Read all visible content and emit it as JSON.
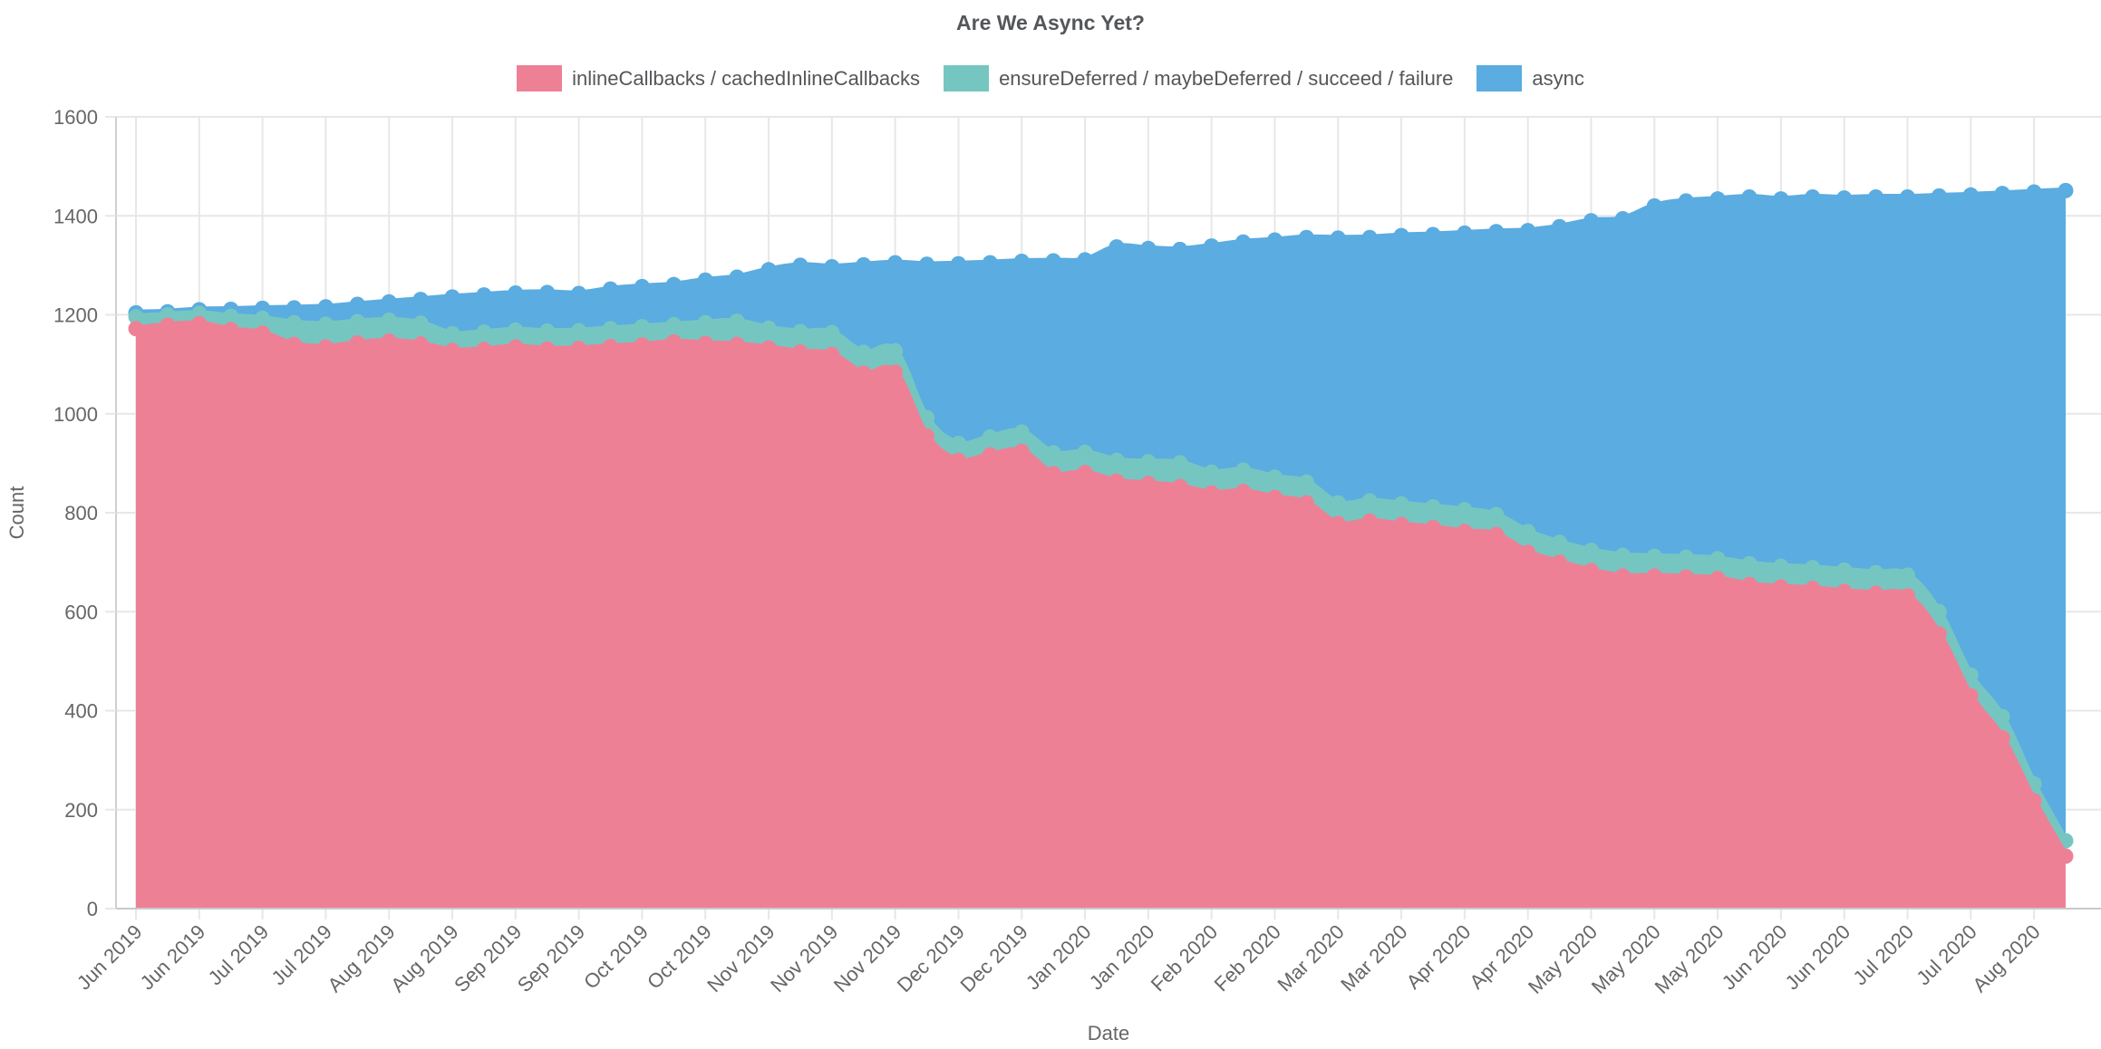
{
  "title": "Are We Async Yet?",
  "legend": {
    "position": "top",
    "items": [
      {
        "label": "inlineCallbacks / cachedInlineCallbacks",
        "color": "#ee8096"
      },
      {
        "label": "ensureDeferred / maybeDeferred / succeed / failure",
        "color": "#75c6c1"
      },
      {
        "label": "async",
        "color": "#5aace1"
      }
    ]
  },
  "chart_data": {
    "type": "area",
    "stacked": true,
    "title": "Are We Async Yet?",
    "xlabel": "Date",
    "ylabel": "Count",
    "ylim": [
      0,
      1600
    ],
    "y_ticks": [
      0,
      200,
      400,
      600,
      800,
      1000,
      1200,
      1400,
      1600
    ],
    "grid": true,
    "point_markers": true,
    "legend_position": "top",
    "n_points": 62,
    "points_per_week": 1,
    "tick_every": 2,
    "x_tick_labels": [
      "Jun 2019",
      "Jun 2019",
      "Jul 2019",
      "Jul 2019",
      "Aug 2019",
      "Aug 2019",
      "Sep 2019",
      "Sep 2019",
      "Oct 2019",
      "Oct 2019",
      "Nov 2019",
      "Nov 2019",
      "Nov 2019",
      "Dec 2019",
      "Dec 2019",
      "Jan 2020",
      "Jan 2020",
      "Feb 2020",
      "Feb 2020",
      "Mar 2020",
      "Mar 2020",
      "Apr 2020",
      "Apr 2020",
      "May 2020",
      "May 2020",
      "May 2020",
      "Jun 2020",
      "Jun 2020",
      "Jul 2020",
      "Jul 2020",
      "Aug 2020"
    ],
    "series": [
      {
        "name": "inlineCallbacks / cachedInlineCallbacks",
        "color": "#ee8096",
        "values": [
          1172,
          1179,
          1182,
          1170,
          1163,
          1140,
          1135,
          1143,
          1147,
          1141,
          1128,
          1130,
          1135,
          1131,
          1132,
          1136,
          1139,
          1145,
          1142,
          1140,
          1133,
          1125,
          1120,
          1082,
          1084,
          955,
          906,
          917,
          924,
          879,
          881,
          864,
          859,
          853,
          840,
          843,
          831,
          820,
          778,
          783,
          776,
          770,
          762,
          756,
          720,
          700,
          683,
          672,
          672,
          670,
          667,
          655,
          650,
          647,
          641,
          637,
          632,
          555,
          430,
          345,
          218,
          106
        ]
      },
      {
        "name": "ensureDeferred / maybeDeferred / succeed / failure",
        "color": "#75c6c1",
        "values": [
          24,
          21,
          21,
          27,
          30,
          44,
          46,
          43,
          42,
          42,
          34,
          35,
          34,
          36,
          36,
          36,
          37,
          35,
          42,
          47,
          40,
          41,
          44,
          42,
          43,
          37,
          34,
          36,
          39,
          42,
          41,
          42,
          44,
          48,
          42,
          43,
          41,
          42,
          42,
          41,
          42,
          42,
          44,
          40,
          42,
          40,
          41,
          42,
          40,
          40,
          40,
          42,
          42,
          42,
          43,
          42,
          42,
          45,
          42,
          43,
          34,
          31
        ]
      },
      {
        "name": "async",
        "color": "#5aace1",
        "values": [
          8,
          6,
          7,
          14,
          20,
          30,
          35,
          35,
          37,
          48,
          74,
          75,
          75,
          78,
          75,
          80,
          81,
          81,
          86,
          89,
          118,
          134,
          133,
          177,
          178,
          310,
          363,
          352,
          345,
          388,
          389,
          431,
          431,
          431,
          457,
          461,
          479,
          494,
          535,
          532,
          542,
          550,
          559,
          572,
          608,
          638,
          666,
          680,
          708,
          720,
          727,
          741,
          742,
          749,
          752,
          759,
          764,
          840,
          970,
          1057,
          1196,
          1314
        ]
      }
    ]
  },
  "style": {
    "grid_color": "#e7e7e7",
    "axis_line_color": "#c9c9c9",
    "y_axis_line_color": "#cfcfcf",
    "tick_text_color": "#666666"
  }
}
